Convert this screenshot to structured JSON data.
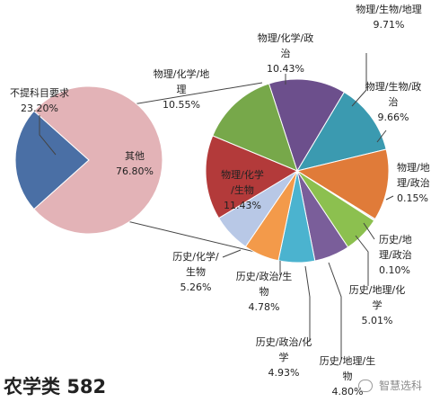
{
  "caption": {
    "title": "农学类",
    "count": "582"
  },
  "watermark": {
    "text": "智慧选科",
    "icon": "wechat-icon"
  },
  "chart_data": {
    "type": "pie",
    "left_pie": {
      "slices": [
        {
          "label": "不提科目要求",
          "value": 23.2,
          "display": "23.20%",
          "color": "#4a6fa5"
        },
        {
          "label": "其他",
          "value": 76.8,
          "display": "76.80%",
          "color": "#e3b3b7"
        }
      ]
    },
    "right_pie": {
      "slices": [
        {
          "label": "物理/化学/政治",
          "value": 10.43,
          "display": "10.43%",
          "color": "#6c4f8c"
        },
        {
          "label": "物理/生物/地理",
          "value": 9.71,
          "display": "9.71%",
          "color": "#3b9ab0"
        },
        {
          "label": "物理/生物/政治",
          "value": 9.66,
          "display": "9.66%",
          "color": "#e07b39"
        },
        {
          "label": "物理/地理/政治",
          "value": 0.15,
          "display": "0.15%",
          "color": "#888888"
        },
        {
          "label": "历史/地理/政治",
          "value": 0.1,
          "display": "0.10%",
          "color": "#bbbbbb"
        },
        {
          "label": "历史/地理/化学",
          "value": 5.01,
          "display": "5.01%",
          "color": "#8cc04f"
        },
        {
          "label": "历史/地理/生物",
          "value": 4.8,
          "display": "4.80%",
          "color": "#7a5e9a"
        },
        {
          "label": "历史/政治/化学",
          "value": 4.93,
          "display": "4.93%",
          "color": "#4bb3cf"
        },
        {
          "label": "历史/政治/生物",
          "value": 4.78,
          "display": "4.78%",
          "color": "#f39a4a"
        },
        {
          "label": "历史/化学/生物",
          "value": 5.26,
          "display": "5.26%",
          "color": "#b8c8e6"
        },
        {
          "label": "物理/化学/生物",
          "value": 11.43,
          "display": "11.43%",
          "color": "#b33a3a"
        },
        {
          "label": "物理/化学/地理",
          "value": 10.55,
          "display": "10.55%",
          "color": "#77a84a"
        }
      ]
    }
  }
}
